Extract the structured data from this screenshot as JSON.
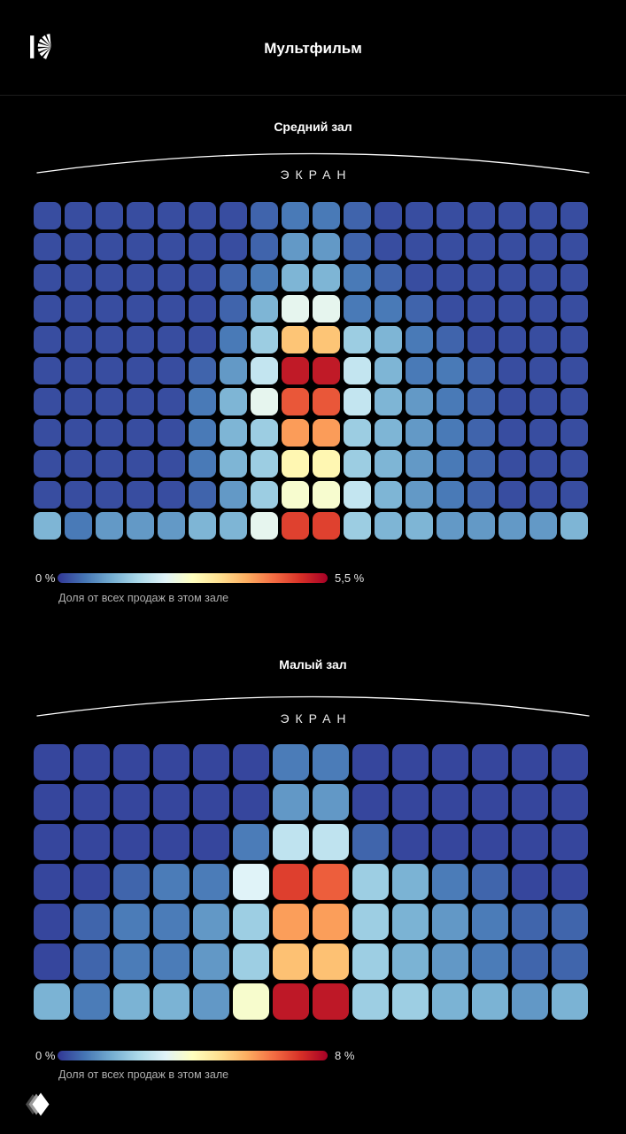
{
  "header": {
    "title": "Мультфильм",
    "logo_icon": "rays-k-logo"
  },
  "sections": [
    {
      "hall_name": "Средний зал",
      "screen_label": "ЭКРАН",
      "legend": {
        "min_label": "0 %",
        "max_label": "5,5 %",
        "caption": "Доля от всех продаж в этом зале"
      }
    },
    {
      "hall_name": "Малый зал",
      "screen_label": "ЭКРАН",
      "legend": {
        "min_label": "0 %",
        "max_label": "8 %",
        "caption": "Доля от всех продаж в этом зале"
      }
    }
  ],
  "colormap": {
    "name": "RdYlBu_r",
    "stops": [
      [
        0.0,
        "313695"
      ],
      [
        0.1,
        "4575b4"
      ],
      [
        0.2,
        "74add1"
      ],
      [
        0.3,
        "abd9e9"
      ],
      [
        0.4,
        "e0f3f8"
      ],
      [
        0.5,
        "ffffbf"
      ],
      [
        0.6,
        "fee090"
      ],
      [
        0.7,
        "fdae61"
      ],
      [
        0.8,
        "f46d43"
      ],
      [
        0.9,
        "d73027"
      ],
      [
        1.0,
        "a50026"
      ]
    ]
  },
  "chart_data": [
    {
      "type": "heatmap",
      "title": "Средний зал",
      "value_label": "Доля от всех продаж в этом зале, %",
      "rows": 11,
      "cols": 18,
      "scale_min": 0,
      "scale_max": 5.5,
      "legend_position": "bottom-left",
      "values": [
        [
          0.2,
          0.2,
          0.2,
          0.2,
          0.2,
          0.2,
          0.2,
          0.4,
          0.6,
          0.6,
          0.4,
          0.2,
          0.2,
          0.2,
          0.2,
          0.2,
          0.2,
          0.2
        ],
        [
          0.2,
          0.2,
          0.2,
          0.2,
          0.2,
          0.2,
          0.2,
          0.4,
          0.9,
          0.9,
          0.4,
          0.2,
          0.2,
          0.2,
          0.2,
          0.2,
          0.2,
          0.2
        ],
        [
          0.2,
          0.2,
          0.2,
          0.2,
          0.2,
          0.2,
          0.4,
          0.6,
          1.2,
          1.2,
          0.6,
          0.4,
          0.2,
          0.2,
          0.2,
          0.2,
          0.2,
          0.2
        ],
        [
          0.2,
          0.2,
          0.2,
          0.2,
          0.2,
          0.2,
          0.4,
          1.2,
          2.3,
          2.3,
          0.6,
          0.6,
          0.4,
          0.2,
          0.2,
          0.2,
          0.2,
          0.2
        ],
        [
          0.2,
          0.2,
          0.2,
          0.2,
          0.2,
          0.2,
          0.6,
          1.5,
          3.6,
          3.6,
          1.5,
          1.2,
          0.6,
          0.4,
          0.2,
          0.2,
          0.2,
          0.2
        ],
        [
          0.2,
          0.2,
          0.2,
          0.2,
          0.2,
          0.4,
          0.9,
          1.9,
          5.2,
          5.2,
          1.9,
          1.2,
          0.6,
          0.6,
          0.4,
          0.2,
          0.2,
          0.2
        ],
        [
          0.2,
          0.2,
          0.2,
          0.2,
          0.2,
          0.6,
          1.2,
          2.3,
          4.6,
          4.6,
          1.9,
          1.2,
          0.9,
          0.6,
          0.4,
          0.2,
          0.2,
          0.2
        ],
        [
          0.2,
          0.2,
          0.2,
          0.2,
          0.2,
          0.6,
          1.2,
          1.5,
          4.0,
          4.0,
          1.5,
          1.2,
          0.9,
          0.6,
          0.4,
          0.2,
          0.2,
          0.2
        ],
        [
          0.2,
          0.2,
          0.2,
          0.2,
          0.2,
          0.6,
          1.2,
          1.5,
          2.9,
          2.9,
          1.5,
          1.2,
          0.9,
          0.6,
          0.4,
          0.2,
          0.2,
          0.2
        ],
        [
          0.2,
          0.2,
          0.2,
          0.2,
          0.2,
          0.4,
          0.9,
          1.5,
          2.6,
          2.6,
          1.9,
          1.2,
          0.9,
          0.6,
          0.4,
          0.2,
          0.2,
          0.2
        ],
        [
          1.2,
          0.6,
          0.9,
          0.9,
          0.9,
          1.2,
          1.2,
          2.3,
          4.8,
          4.8,
          1.5,
          1.2,
          1.2,
          0.9,
          0.9,
          0.9,
          0.9,
          1.2
        ]
      ]
    },
    {
      "type": "heatmap",
      "title": "Малый зал",
      "value_label": "Доля от всех продаж в этом зале, %",
      "rows": 7,
      "cols": 14,
      "scale_min": 0,
      "scale_max": 8,
      "legend_position": "bottom-left",
      "values": [
        [
          0.2,
          0.2,
          0.2,
          0.2,
          0.2,
          0.2,
          0.9,
          0.9,
          0.2,
          0.2,
          0.2,
          0.2,
          0.2,
          0.2
        ],
        [
          0.2,
          0.2,
          0.2,
          0.2,
          0.2,
          0.2,
          1.3,
          1.3,
          0.2,
          0.2,
          0.2,
          0.2,
          0.2,
          0.2
        ],
        [
          0.2,
          0.2,
          0.2,
          0.2,
          0.2,
          0.9,
          2.7,
          2.7,
          0.6,
          0.2,
          0.2,
          0.2,
          0.2,
          0.2
        ],
        [
          0.2,
          0.2,
          0.6,
          0.9,
          0.9,
          3.2,
          7.0,
          6.6,
          2.2,
          1.7,
          0.9,
          0.6,
          0.2,
          0.2
        ],
        [
          0.2,
          0.6,
          0.9,
          0.9,
          1.3,
          2.2,
          5.8,
          5.8,
          2.2,
          1.7,
          1.3,
          0.9,
          0.6,
          0.6
        ],
        [
          0.2,
          0.6,
          0.9,
          0.9,
          1.3,
          2.2,
          5.3,
          5.3,
          2.2,
          1.7,
          1.3,
          0.9,
          0.6,
          0.6
        ],
        [
          1.7,
          0.9,
          1.7,
          1.7,
          1.3,
          3.8,
          7.6,
          7.6,
          2.2,
          2.2,
          1.7,
          1.7,
          1.3,
          1.7
        ]
      ]
    }
  ],
  "footer": {
    "logo_icon": "diamond-stack-logo"
  }
}
